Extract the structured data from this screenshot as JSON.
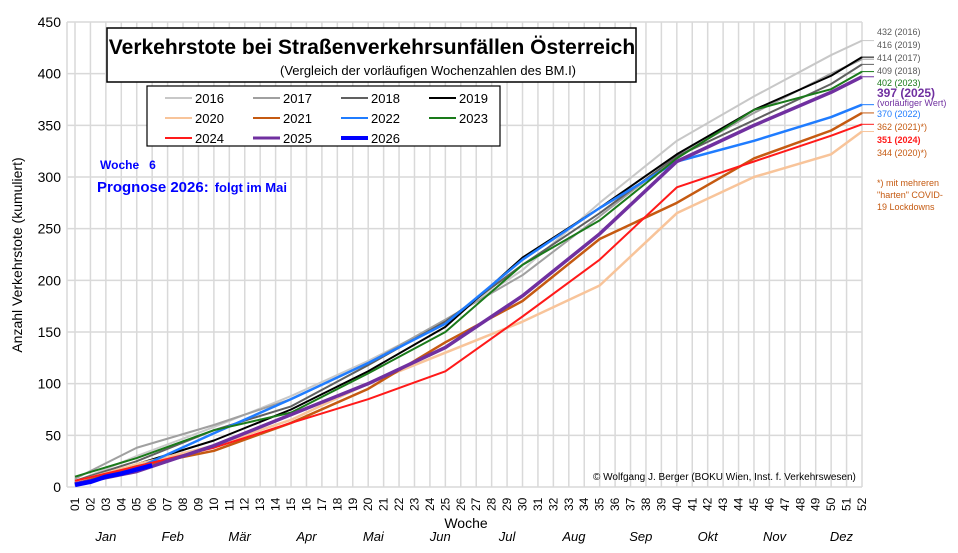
{
  "chart_data": {
    "type": "line",
    "title": "Verkehrstote bei Straßenverkehrsunfällen Österreich",
    "subtitle": "(Vergleich der vorläufigen Wochenzahlen des BM.I)",
    "xlabel": "Woche",
    "ylabel": "Anzahl Verkehrstote (kumuliert)",
    "ylim": [
      0,
      450
    ],
    "yticks": [
      0,
      50,
      100,
      150,
      200,
      250,
      300,
      350,
      400,
      450
    ],
    "xlim": [
      1,
      52
    ],
    "xticks": [
      "01",
      "02",
      "03",
      "04",
      "05",
      "06",
      "07",
      "08",
      "09",
      "10",
      "11",
      "12",
      "13",
      "14",
      "15",
      "16",
      "17",
      "18",
      "19",
      "20",
      "21",
      "22",
      "23",
      "24",
      "25",
      "26",
      "27",
      "28",
      "29",
      "30",
      "31",
      "32",
      "33",
      "34",
      "35",
      "36",
      "37",
      "38",
      "39",
      "40",
      "41",
      "42",
      "43",
      "44",
      "45",
      "46",
      "47",
      "48",
      "49",
      "50",
      "51",
      "52"
    ],
    "months": [
      "Jan",
      "Feb",
      "Mär",
      "Apr",
      "Mai",
      "Jun",
      "Jul",
      "Aug",
      "Sep",
      "Okt",
      "Nov",
      "Dez"
    ],
    "grid": true,
    "legend_position": "top-left",
    "series": [
      {
        "name": "2016",
        "color": "#c8c8c8",
        "width": 2,
        "x": [
          1,
          5,
          10,
          15,
          20,
          25,
          30,
          35,
          40,
          45,
          50,
          52
        ],
        "values": [
          5,
          30,
          58,
          88,
          122,
          160,
          210,
          275,
          335,
          378,
          418,
          432
        ]
      },
      {
        "name": "2017",
        "color": "#a0a0a0",
        "width": 2,
        "x": [
          1,
          5,
          10,
          15,
          20,
          25,
          30,
          35,
          40,
          45,
          50,
          52
        ],
        "values": [
          8,
          38,
          60,
          85,
          120,
          162,
          205,
          262,
          320,
          362,
          400,
          414
        ]
      },
      {
        "name": "2018",
        "color": "#606060",
        "width": 2,
        "x": [
          1,
          5,
          10,
          15,
          20,
          25,
          30,
          35,
          40,
          45,
          50,
          52
        ],
        "values": [
          6,
          25,
          55,
          78,
          118,
          160,
          215,
          265,
          320,
          355,
          390,
          409
        ]
      },
      {
        "name": "2019",
        "color": "#000000",
        "width": 2,
        "x": [
          1,
          5,
          10,
          15,
          20,
          25,
          30,
          35,
          40,
          45,
          50,
          52
        ],
        "values": [
          4,
          22,
          45,
          75,
          112,
          155,
          222,
          270,
          322,
          365,
          398,
          416
        ]
      },
      {
        "name": "2020",
        "color": "#f8c49a",
        "width": 2.5,
        "x": [
          1,
          5,
          10,
          15,
          20,
          25,
          30,
          35,
          40,
          45,
          50,
          52
        ],
        "values": [
          5,
          22,
          40,
          65,
          100,
          130,
          160,
          195,
          265,
          300,
          322,
          344
        ]
      },
      {
        "name": "2021",
        "color": "#c55a11",
        "width": 2.5,
        "x": [
          1,
          5,
          10,
          15,
          20,
          25,
          30,
          35,
          40,
          45,
          50,
          52
        ],
        "values": [
          3,
          20,
          35,
          62,
          95,
          140,
          180,
          240,
          275,
          318,
          345,
          362
        ]
      },
      {
        "name": "2022",
        "color": "#1f7cff",
        "width": 2.5,
        "x": [
          1,
          5,
          10,
          15,
          20,
          25,
          30,
          35,
          40,
          45,
          50,
          52
        ],
        "values": [
          2,
          18,
          52,
          85,
          120,
          158,
          220,
          270,
          315,
          335,
          358,
          370
        ]
      },
      {
        "name": "2023",
        "color": "#1a7a1a",
        "width": 2,
        "x": [
          1,
          5,
          10,
          15,
          20,
          25,
          30,
          35,
          40,
          45,
          50,
          52
        ],
        "values": [
          10,
          28,
          55,
          72,
          110,
          150,
          215,
          258,
          318,
          365,
          385,
          402
        ]
      },
      {
        "name": "2024",
        "color": "#ff1a1a",
        "width": 2,
        "x": [
          1,
          5,
          10,
          15,
          20,
          25,
          30,
          35,
          40,
          45,
          50,
          52
        ],
        "values": [
          6,
          20,
          38,
          62,
          85,
          112,
          165,
          220,
          290,
          315,
          340,
          351
        ]
      },
      {
        "name": "2025",
        "color": "#7030a0",
        "width": 3.5,
        "x": [
          1,
          5,
          10,
          15,
          20,
          25,
          30,
          35,
          40,
          45,
          50,
          52
        ],
        "values": [
          3,
          15,
          40,
          70,
          100,
          135,
          185,
          245,
          315,
          350,
          382,
          397
        ]
      },
      {
        "name": "2026",
        "color": "#0000ff",
        "width": 4.5,
        "x": [
          1,
          2,
          3,
          4,
          5,
          6
        ],
        "values": [
          2,
          5,
          10,
          13,
          17,
          21
        ]
      }
    ]
  },
  "annotations": {
    "week_label": "Woche",
    "week_value": "6",
    "forecast_label": "Prognose 2026:",
    "forecast_value": "folgt im Mai",
    "copyright": "© Wolfgang J. Berger (BOKU Wien, Inst. f. Verkehrswesen)",
    "end_labels": [
      {
        "text": "432 (2016)",
        "color": "#595959"
      },
      {
        "text": "416 (2019)",
        "color": "#595959"
      },
      {
        "text": "414 (2017)",
        "color": "#595959"
      },
      {
        "text": "409 (2018)",
        "color": "#595959"
      },
      {
        "text": "402 (2023)",
        "color": "#1a7a1a"
      },
      {
        "text": "397 (2025)",
        "color": "#7030a0"
      },
      {
        "text": "(vorläufiger Wert)",
        "color": "#7030a0"
      },
      {
        "text": "370 (2022)",
        "color": "#1f7cff"
      },
      {
        "text": "362 (2021)*)",
        "color": "#c55a11"
      },
      {
        "text": "351 (2024)",
        "color": "#ff1a1a"
      },
      {
        "text": "344 (2020)*)",
        "color": "#c55a11"
      }
    ],
    "footnote": [
      "*) mit mehreren",
      "\"harten\" COVID-",
      "19 Lockdowns"
    ]
  }
}
